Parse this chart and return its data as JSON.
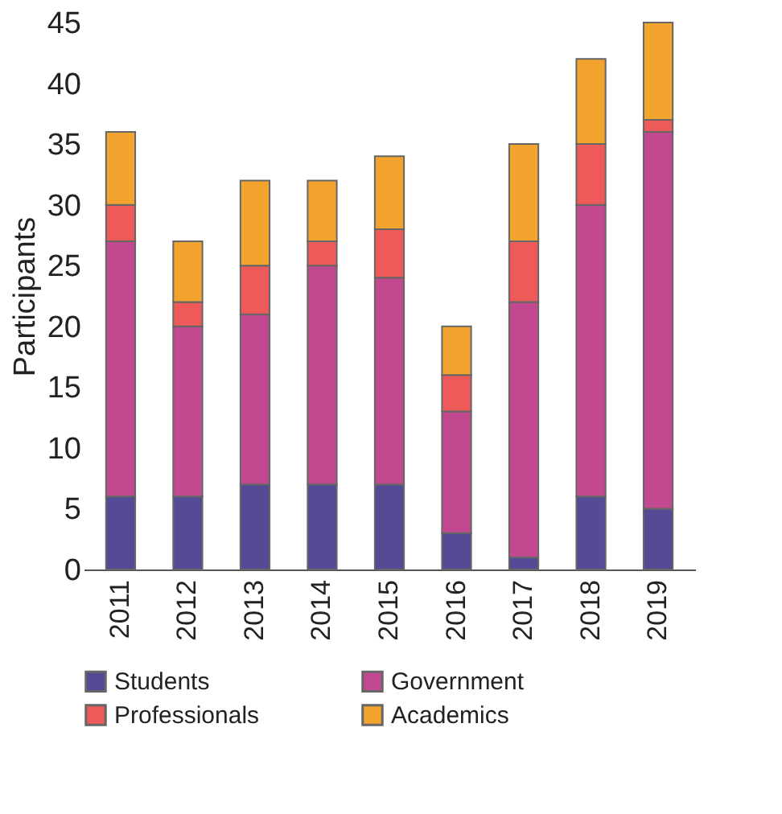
{
  "chart_data": {
    "type": "bar",
    "stacked": true,
    "ylabel": "Participants",
    "categories": [
      "2011",
      "2012",
      "2013",
      "2014",
      "2015",
      "2016",
      "2017",
      "2018",
      "2019"
    ],
    "series": [
      {
        "name": "Students",
        "color": "#544a96",
        "values": [
          6,
          6,
          7,
          7,
          7,
          3,
          1,
          6,
          5
        ]
      },
      {
        "name": "Government",
        "color": "#c2488f",
        "values": [
          21,
          14,
          14,
          18,
          17,
          10,
          21,
          24,
          31
        ]
      },
      {
        "name": "Professionals",
        "color": "#ee5a5a",
        "values": [
          3,
          2,
          4,
          2,
          4,
          3,
          5,
          5,
          1
        ]
      },
      {
        "name": "Academics",
        "color": "#f2a42e",
        "values": [
          6,
          5,
          7,
          5,
          6,
          4,
          8,
          7,
          8
        ]
      }
    ],
    "ylim": [
      0,
      45
    ],
    "yticks": [
      0,
      5,
      10,
      15,
      20,
      25,
      30,
      35,
      40,
      45
    ],
    "grid": false,
    "legend": "bottom"
  }
}
